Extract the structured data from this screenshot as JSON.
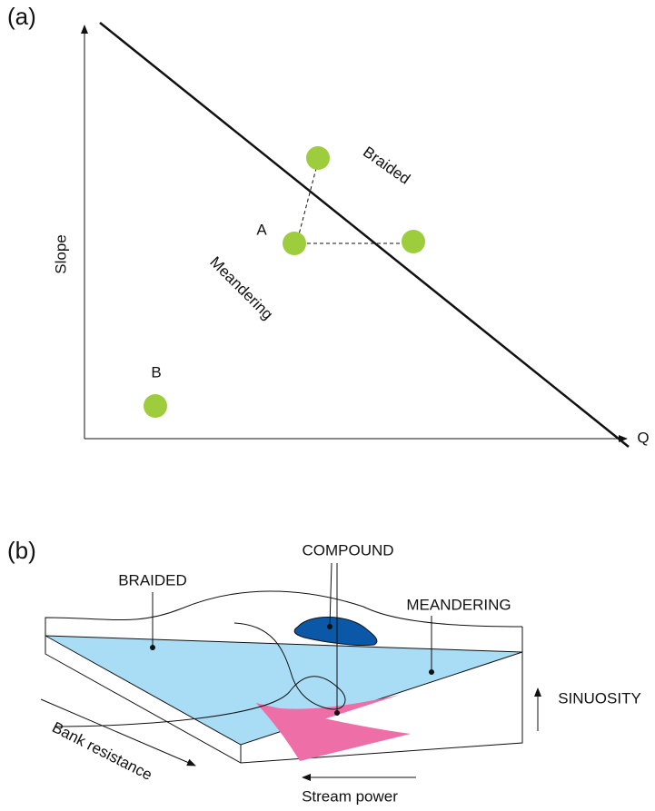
{
  "panel_a": {
    "label": "(a)",
    "y_axis": "Slope",
    "x_axis": "Q",
    "region_upper": "Braided",
    "region_lower": "Meandering",
    "point_a": "A",
    "point_b": "B"
  },
  "panel_b": {
    "label": "(b)",
    "compound": "COMPOUND",
    "braided": "BRAIDED",
    "meandering": "MEANDERING",
    "sinuosity": "SINUOSITY",
    "bank_resistance": "Bank resistance",
    "stream_power": "Stream power"
  }
}
